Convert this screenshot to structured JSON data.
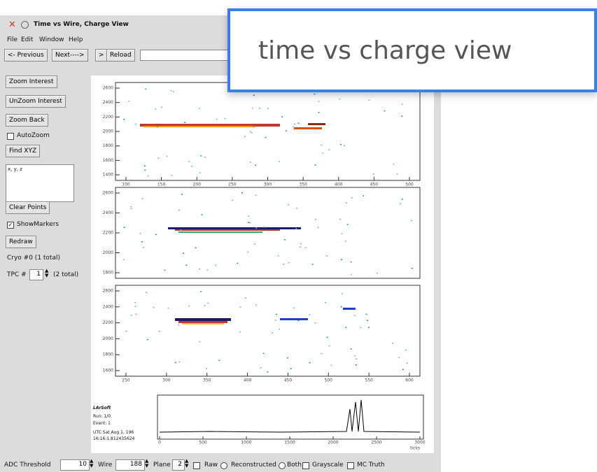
{
  "window": {
    "title": "Time vs Wire, Charge View",
    "menu": [
      "File",
      "Edit",
      "Window",
      "Help"
    ],
    "toolbar": [
      "<- Previous",
      "Next---->",
      ">",
      "Reload"
    ]
  },
  "sidebar": {
    "buttons": [
      "Zoom Interest",
      "UnZoom Interest",
      "Zoom Back"
    ],
    "autozoom": "AutoZoom",
    "find": "Find XYZ",
    "coords": "x, y, z",
    "clear": "Clear Points",
    "markers": "ShowMarkers",
    "redraw": "Redraw",
    "cryo": "Cryo #0 (1 total)",
    "tpc_label": "TPC #",
    "tpc_value": "1",
    "tpc_total": "(2 total)"
  },
  "panels": [
    {
      "yticks": [
        2600,
        2400,
        2200,
        2000,
        1800,
        1600,
        1400
      ],
      "xticks": [
        100,
        150,
        200,
        250,
        300,
        350,
        400,
        450,
        500
      ]
    },
    {
      "yticks": [
        2600,
        2400,
        2200,
        2000,
        1800
      ],
      "xticks": []
    },
    {
      "yticks": [
        2600,
        2400,
        2200,
        2000,
        1800,
        1600
      ],
      "xticks": [
        250,
        300,
        350,
        400,
        450,
        500,
        550,
        600
      ]
    }
  ],
  "waveform": {
    "xticks": [
      0,
      500,
      1000,
      1500,
      2000,
      2500,
      3000
    ],
    "xlabel": "ticks"
  },
  "info": [
    "LArSoft",
    "Run: 1/0",
    "Event: 1",
    "UTC Sat Aug 1, 196",
    "16:16:1.812435624"
  ],
  "bottom": {
    "threshold_label": "ADC Threshold",
    "threshold": "10",
    "wire_label": "Wire",
    "wire": "188",
    "plane_label": "Plane",
    "plane": "2",
    "options": [
      "Raw",
      "Reconstructed",
      "Both",
      "Grayscale",
      "MC Truth"
    ]
  },
  "callout": {
    "text": "time vs charge view"
  }
}
